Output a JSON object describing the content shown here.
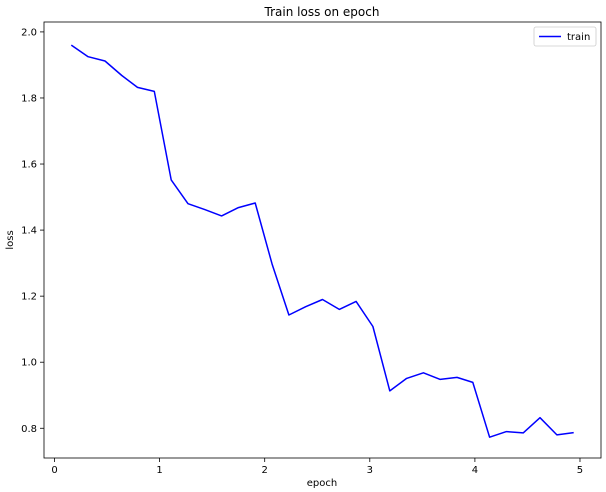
{
  "chart_data": {
    "type": "line",
    "title": "Train loss on epoch",
    "xlabel": "epoch",
    "ylabel": "loss",
    "xlim": [
      -0.1,
      5.2
    ],
    "ylim": [
      0.71,
      2.03
    ],
    "xticks": [
      0,
      1,
      2,
      3,
      4,
      5
    ],
    "yticks": [
      0.8,
      1.0,
      1.2,
      1.4,
      1.6,
      1.8,
      2.0
    ],
    "grid": false,
    "legend_position": "top-right",
    "series": [
      {
        "name": "train",
        "color": "#0000ff",
        "x": [
          0.16,
          0.32,
          0.48,
          0.64,
          0.79,
          0.95,
          1.11,
          1.27,
          1.43,
          1.59,
          1.75,
          1.91,
          2.07,
          2.23,
          2.39,
          2.55,
          2.71,
          2.87,
          3.03,
          3.19,
          3.35,
          3.51,
          3.67,
          3.83,
          3.98,
          4.14,
          4.3,
          4.46,
          4.62,
          4.78,
          4.94
        ],
        "y": [
          1.96,
          1.925,
          1.912,
          1.868,
          1.832,
          1.82,
          1.552,
          1.48,
          1.462,
          1.443,
          1.468,
          1.482,
          1.297,
          1.143,
          1.168,
          1.19,
          1.16,
          1.184,
          1.108,
          0.913,
          0.951,
          0.968,
          0.948,
          0.954,
          0.939,
          0.773,
          0.79,
          0.786,
          0.832,
          0.78,
          0.787
        ]
      }
    ]
  }
}
